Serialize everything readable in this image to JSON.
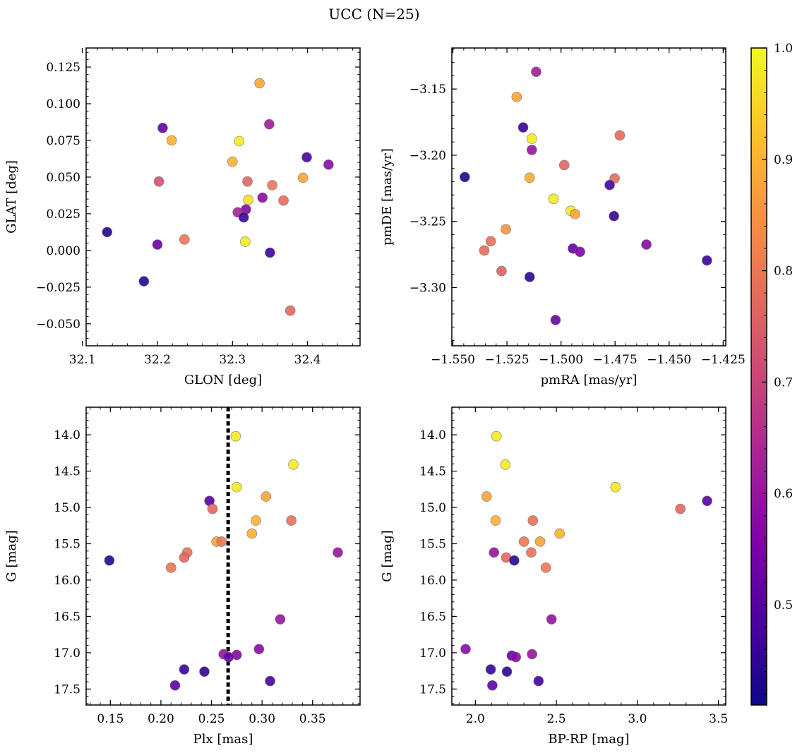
{
  "figure": {
    "title": "UCC (N=25)"
  },
  "colorbar": {
    "range": [
      0.41,
      1.0
    ],
    "ticks": [
      0.5,
      0.6,
      0.7,
      0.8,
      0.9,
      1.0
    ],
    "tick_labels": [
      "0.5",
      "0.6",
      "0.7",
      "0.8",
      "0.9",
      "1.0"
    ],
    "colormap": "plasma"
  },
  "chart_data": [
    {
      "id": "glon-glat",
      "type": "scatter",
      "xlabel": "GLON [deg]",
      "ylabel": "GLAT [deg]",
      "xlim": [
        32.105,
        32.47
      ],
      "ylim": [
        -0.065,
        0.138
      ],
      "xticks": [
        32.1,
        32.2,
        32.3,
        32.4
      ],
      "xtick_labels": [
        "32.1",
        "32.2",
        "32.3",
        "32.4"
      ],
      "yticks": [
        -0.05,
        -0.025,
        0.0,
        0.025,
        0.05,
        0.075,
        0.1,
        0.125
      ],
      "ytick_labels": [
        "−0.050",
        "−0.025",
        "0.000",
        "0.025",
        "0.050",
        "0.075",
        "0.100",
        "0.125"
      ],
      "points": [
        {
          "x": 32.336,
          "y": 0.114,
          "c": 0.88
        },
        {
          "x": 32.207,
          "y": 0.0835,
          "c": 0.52
        },
        {
          "x": 32.219,
          "y": 0.075,
          "c": 0.9
        },
        {
          "x": 32.309,
          "y": 0.0745,
          "c": 0.98
        },
        {
          "x": 32.349,
          "y": 0.086,
          "c": 0.62
        },
        {
          "x": 32.399,
          "y": 0.0635,
          "c": 0.48
        },
        {
          "x": 32.428,
          "y": 0.0585,
          "c": 0.58
        },
        {
          "x": 32.3,
          "y": 0.0605,
          "c": 0.9
        },
        {
          "x": 32.202,
          "y": 0.047,
          "c": 0.73
        },
        {
          "x": 32.32,
          "y": 0.047,
          "c": 0.77
        },
        {
          "x": 32.353,
          "y": 0.0445,
          "c": 0.8
        },
        {
          "x": 32.394,
          "y": 0.0495,
          "c": 0.88
        },
        {
          "x": 32.321,
          "y": 0.0345,
          "c": 0.97
        },
        {
          "x": 32.34,
          "y": 0.036,
          "c": 0.58
        },
        {
          "x": 32.368,
          "y": 0.034,
          "c": 0.78
        },
        {
          "x": 32.318,
          "y": 0.028,
          "c": 0.57
        },
        {
          "x": 32.307,
          "y": 0.026,
          "c": 0.63
        },
        {
          "x": 32.315,
          "y": 0.0225,
          "c": 0.46
        },
        {
          "x": 32.133,
          "y": 0.0125,
          "c": 0.44
        },
        {
          "x": 32.2,
          "y": 0.004,
          "c": 0.53
        },
        {
          "x": 32.236,
          "y": 0.0075,
          "c": 0.8
        },
        {
          "x": 32.317,
          "y": 0.006,
          "c": 0.98
        },
        {
          "x": 32.35,
          "y": -0.0015,
          "c": 0.47
        },
        {
          "x": 32.182,
          "y": -0.021,
          "c": 0.44
        },
        {
          "x": 32.377,
          "y": -0.041,
          "c": 0.77
        }
      ]
    },
    {
      "id": "pmra-pmde",
      "type": "scatter",
      "xlabel": "pmRA [mas/yr]",
      "ylabel": "pmDE [mas/yr]",
      "xlim": [
        -1.5505,
        -1.4238
      ],
      "ylim": [
        -3.344,
        -3.119
      ],
      "xticks": [
        -1.55,
        -1.525,
        -1.5,
        -1.475,
        -1.45,
        -1.425
      ],
      "xtick_labels": [
        "−1.550",
        "−1.525",
        "−1.500",
        "−1.475",
        "−1.450",
        "−1.425"
      ],
      "yticks": [
        -3.3,
        -3.25,
        -3.2,
        -3.15
      ],
      "ytick_labels": [
        "−3.30",
        "−3.25",
        "−3.20",
        "−3.15"
      ],
      "points": [
        {
          "x": -1.5115,
          "y": -3.137,
          "c": 0.62
        },
        {
          "x": -1.5205,
          "y": -3.156,
          "c": 0.88
        },
        {
          "x": -1.5175,
          "y": -3.179,
          "c": 0.46
        },
        {
          "x": -1.5135,
          "y": -3.1875,
          "c": 0.98
        },
        {
          "x": -1.4728,
          "y": -3.185,
          "c": 0.78
        },
        {
          "x": -1.5135,
          "y": -3.196,
          "c": 0.6
        },
        {
          "x": -1.5445,
          "y": -3.2165,
          "c": 0.43
        },
        {
          "x": -1.5145,
          "y": -3.217,
          "c": 0.89
        },
        {
          "x": -1.4985,
          "y": -3.2075,
          "c": 0.77
        },
        {
          "x": -1.4752,
          "y": -3.2175,
          "c": 0.78
        },
        {
          "x": -1.4775,
          "y": -3.2225,
          "c": 0.48
        },
        {
          "x": -1.5035,
          "y": -3.233,
          "c": 0.98
        },
        {
          "x": -1.4955,
          "y": -3.242,
          "c": 0.98
        },
        {
          "x": -1.4935,
          "y": -3.2445,
          "c": 0.88
        },
        {
          "x": -1.4755,
          "y": -3.246,
          "c": 0.46
        },
        {
          "x": -1.5255,
          "y": -3.256,
          "c": 0.85
        },
        {
          "x": -1.5325,
          "y": -3.265,
          "c": 0.79
        },
        {
          "x": -1.5355,
          "y": -3.272,
          "c": 0.78
        },
        {
          "x": -1.4945,
          "y": -3.2705,
          "c": 0.52
        },
        {
          "x": -1.4912,
          "y": -3.273,
          "c": 0.56
        },
        {
          "x": -1.4605,
          "y": -3.2675,
          "c": 0.57
        },
        {
          "x": -1.4325,
          "y": -3.2795,
          "c": 0.47
        },
        {
          "x": -1.5275,
          "y": -3.2875,
          "c": 0.76
        },
        {
          "x": -1.5145,
          "y": -3.292,
          "c": 0.44
        },
        {
          "x": -1.5025,
          "y": -3.3245,
          "c": 0.53
        }
      ]
    },
    {
      "id": "plx-g",
      "type": "scatter",
      "xlabel": "Plx [mas]",
      "ylabel": "G [mag]",
      "xlim": [
        0.126,
        0.397
      ],
      "ylim": [
        17.72,
        13.62
      ],
      "y_inverted": true,
      "xticks": [
        0.15,
        0.2,
        0.25,
        0.3,
        0.35
      ],
      "xtick_labels": [
        "0.15",
        "0.20",
        "0.25",
        "0.30",
        "0.35"
      ],
      "yticks": [
        14.0,
        14.5,
        15.0,
        15.5,
        16.0,
        16.5,
        17.0,
        17.5
      ],
      "ytick_labels": [
        "14.0",
        "14.5",
        "15.0",
        "15.5",
        "16.0",
        "16.5",
        "17.0",
        "17.5"
      ],
      "vline": {
        "x": 0.2665,
        "style": "dotted",
        "color": "#000000"
      },
      "points": [
        {
          "x": 0.274,
          "y": 14.02,
          "c": 0.98
        },
        {
          "x": 0.331,
          "y": 14.41,
          "c": 0.98
        },
        {
          "x": 0.275,
          "y": 14.72,
          "c": 0.98
        },
        {
          "x": 0.248,
          "y": 14.91,
          "c": 0.5
        },
        {
          "x": 0.251,
          "y": 15.02,
          "c": 0.77
        },
        {
          "x": 0.304,
          "y": 14.85,
          "c": 0.88
        },
        {
          "x": 0.294,
          "y": 15.18,
          "c": 0.9
        },
        {
          "x": 0.329,
          "y": 15.18,
          "c": 0.79
        },
        {
          "x": 0.255,
          "y": 15.47,
          "c": 0.88
        },
        {
          "x": 0.26,
          "y": 15.47,
          "c": 0.8
        },
        {
          "x": 0.29,
          "y": 15.36,
          "c": 0.9
        },
        {
          "x": 0.375,
          "y": 15.62,
          "c": 0.6
        },
        {
          "x": 0.226,
          "y": 15.62,
          "c": 0.79
        },
        {
          "x": 0.223,
          "y": 15.69,
          "c": 0.77
        },
        {
          "x": 0.149,
          "y": 15.73,
          "c": 0.44
        },
        {
          "x": 0.21,
          "y": 15.83,
          "c": 0.8
        },
        {
          "x": 0.318,
          "y": 16.54,
          "c": 0.6
        },
        {
          "x": 0.297,
          "y": 16.95,
          "c": 0.58
        },
        {
          "x": 0.262,
          "y": 17.02,
          "c": 0.6
        },
        {
          "x": 0.275,
          "y": 17.03,
          "c": 0.57
        },
        {
          "x": 0.267,
          "y": 17.06,
          "c": 0.52
        },
        {
          "x": 0.223,
          "y": 17.23,
          "c": 0.46
        },
        {
          "x": 0.243,
          "y": 17.26,
          "c": 0.45
        },
        {
          "x": 0.308,
          "y": 17.39,
          "c": 0.48
        },
        {
          "x": 0.214,
          "y": 17.45,
          "c": 0.51
        }
      ]
    },
    {
      "id": "bprp-g",
      "type": "scatter",
      "xlabel": "BP-RP [mag]",
      "ylabel": "G [mag]",
      "xlim": [
        1.855,
        3.545
      ],
      "ylim": [
        17.72,
        13.62
      ],
      "y_inverted": true,
      "xticks": [
        2.0,
        2.5,
        3.0,
        3.5
      ],
      "xtick_labels": [
        "2.0",
        "2.5",
        "3.0",
        "3.5"
      ],
      "yticks": [
        14.0,
        14.5,
        15.0,
        15.5,
        16.0,
        16.5,
        17.0,
        17.5
      ],
      "ytick_labels": [
        "14.0",
        "14.5",
        "15.0",
        "15.5",
        "16.0",
        "16.5",
        "17.0",
        "17.5"
      ],
      "points": [
        {
          "x": 2.13,
          "y": 14.02,
          "c": 0.98
        },
        {
          "x": 2.185,
          "y": 14.41,
          "c": 0.98
        },
        {
          "x": 2.865,
          "y": 14.72,
          "c": 0.98
        },
        {
          "x": 3.43,
          "y": 14.91,
          "c": 0.5
        },
        {
          "x": 3.265,
          "y": 15.02,
          "c": 0.77
        },
        {
          "x": 2.07,
          "y": 14.85,
          "c": 0.88
        },
        {
          "x": 2.125,
          "y": 15.18,
          "c": 0.9
        },
        {
          "x": 2.355,
          "y": 15.18,
          "c": 0.79
        },
        {
          "x": 2.3,
          "y": 15.47,
          "c": 0.8
        },
        {
          "x": 2.4,
          "y": 15.47,
          "c": 0.88
        },
        {
          "x": 2.52,
          "y": 15.36,
          "c": 0.9
        },
        {
          "x": 2.115,
          "y": 15.62,
          "c": 0.6
        },
        {
          "x": 2.345,
          "y": 15.62,
          "c": 0.79
        },
        {
          "x": 2.19,
          "y": 15.69,
          "c": 0.77
        },
        {
          "x": 2.24,
          "y": 15.73,
          "c": 0.44
        },
        {
          "x": 2.435,
          "y": 15.83,
          "c": 0.8
        },
        {
          "x": 2.47,
          "y": 16.54,
          "c": 0.6
        },
        {
          "x": 1.94,
          "y": 16.95,
          "c": 0.58
        },
        {
          "x": 2.225,
          "y": 17.04,
          "c": 0.52
        },
        {
          "x": 2.25,
          "y": 17.06,
          "c": 0.57
        },
        {
          "x": 2.35,
          "y": 17.02,
          "c": 0.6
        },
        {
          "x": 2.095,
          "y": 17.23,
          "c": 0.46
        },
        {
          "x": 2.195,
          "y": 17.26,
          "c": 0.45
        },
        {
          "x": 2.39,
          "y": 17.39,
          "c": 0.48
        },
        {
          "x": 2.105,
          "y": 17.45,
          "c": 0.51
        }
      ]
    }
  ]
}
